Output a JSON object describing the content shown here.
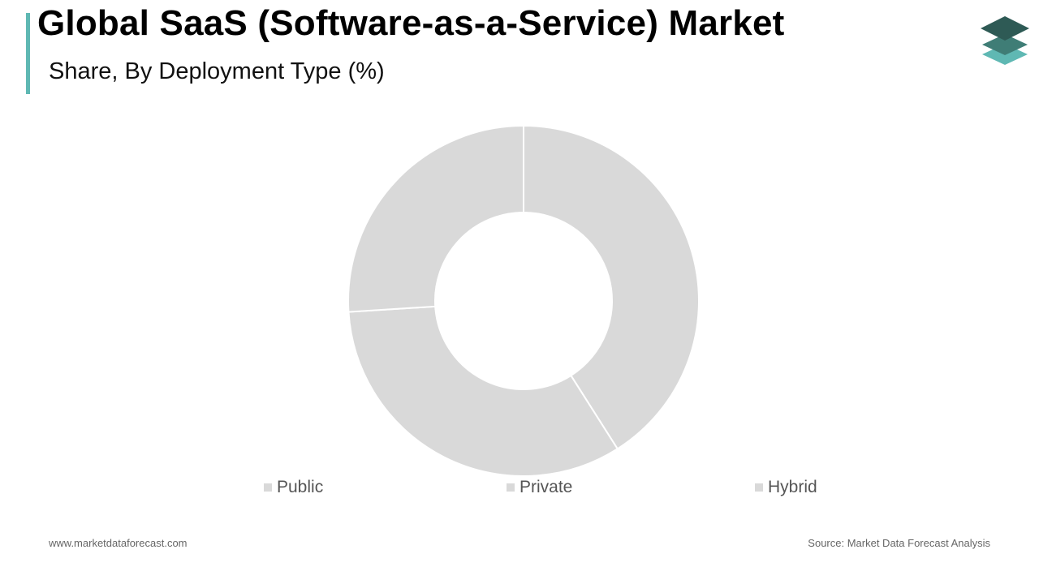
{
  "header": {
    "title": "Global SaaS (Software-as-a-Service) Market",
    "subtitle": "Share, By Deployment Type (%)",
    "accent_color": "#5fb8b3"
  },
  "logo": {
    "icon": "stacked-layers-icon",
    "colors": [
      "#2e5a55",
      "#3f7d76",
      "#5fb8b3"
    ]
  },
  "chart_data": {
    "type": "pie",
    "variant": "donut",
    "title": "Global SaaS (Software-as-a-Service) Market",
    "subtitle": "Share, By Deployment Type (%)",
    "categories": [
      "Public",
      "Private",
      "Hybrid"
    ],
    "values": [
      41,
      33,
      26
    ],
    "slice_color": "#d9d9d9",
    "legend_position": "bottom"
  },
  "footer": {
    "website": "www.marketdataforecast.com",
    "source": "Source: Market Data Forecast Analysis"
  }
}
